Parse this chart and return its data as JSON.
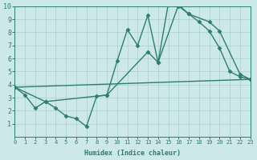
{
  "line1_x": [
    0,
    1,
    2,
    3,
    4,
    5,
    6,
    7,
    8,
    9,
    10,
    11,
    12,
    13,
    14,
    15,
    16,
    17,
    18,
    19,
    20,
    21,
    22,
    23
  ],
  "line1_y": [
    3.8,
    3.2,
    2.2,
    2.7,
    2.2,
    1.6,
    1.4,
    0.8,
    3.1,
    3.2,
    5.8,
    8.2,
    7.0,
    9.3,
    5.7,
    10.2,
    10.0,
    9.4,
    8.8,
    8.1,
    6.8,
    5.0,
    4.6,
    4.4
  ],
  "line2_x": [
    0,
    3,
    9,
    13,
    14,
    16,
    17,
    19,
    20,
    22,
    23
  ],
  "line2_y": [
    3.8,
    2.7,
    3.2,
    6.5,
    5.7,
    10.1,
    9.4,
    8.8,
    8.1,
    4.8,
    4.4
  ],
  "line3_x": [
    0,
    23
  ],
  "line3_y": [
    3.8,
    4.4
  ],
  "color": "#2e7d6e",
  "bg_color": "#cce8e8",
  "grid_color": "#aacfcf",
  "xlabel": "Humidex (Indice chaleur)",
  "xlim": [
    0,
    23
  ],
  "ylim": [
    0,
    10
  ],
  "xticks": [
    0,
    1,
    2,
    3,
    4,
    5,
    6,
    7,
    8,
    9,
    10,
    11,
    12,
    13,
    14,
    15,
    16,
    17,
    18,
    19,
    20,
    21,
    22,
    23
  ],
  "yticks": [
    1,
    2,
    3,
    4,
    5,
    6,
    7,
    8,
    9,
    10
  ],
  "marker": "D",
  "markersize": 2.5,
  "linewidth": 1.0,
  "xlabel_fontsize": 6.0,
  "tick_fontsize_x": 5.0,
  "tick_fontsize_y": 6.0
}
